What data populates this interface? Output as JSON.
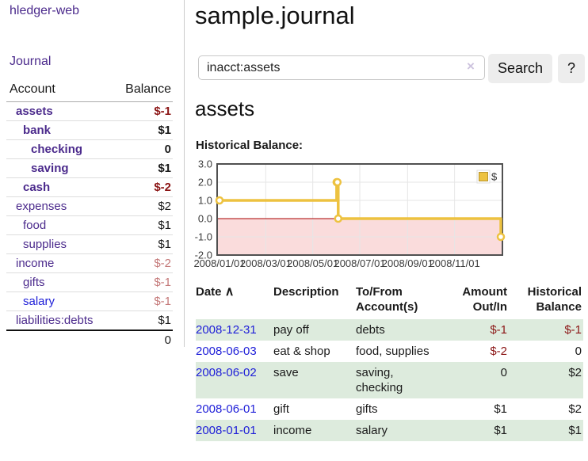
{
  "app": {
    "brand": "hledger-web",
    "journal_link": "Journal"
  },
  "sidebar_accounts": {
    "headers": [
      "Account",
      "Balance"
    ],
    "rows": [
      {
        "name": "assets",
        "depth": 0,
        "bold": true,
        "balance": "$-1",
        "neg": "strong",
        "link": "purple"
      },
      {
        "name": "bank",
        "depth": 1,
        "bold": true,
        "balance": "$1",
        "neg": "none",
        "link": "purple"
      },
      {
        "name": "checking",
        "depth": 2,
        "bold": true,
        "balance": "0",
        "neg": "none",
        "link": "purple"
      },
      {
        "name": "saving",
        "depth": 2,
        "bold": true,
        "balance": "$1",
        "neg": "none",
        "link": "purple"
      },
      {
        "name": "cash",
        "depth": 1,
        "bold": true,
        "balance": "$-2",
        "neg": "strong",
        "link": "purple"
      },
      {
        "name": "expenses",
        "depth": 0,
        "bold": false,
        "balance": "$2",
        "neg": "none",
        "link": "purple"
      },
      {
        "name": "food",
        "depth": 1,
        "bold": false,
        "balance": "$1",
        "neg": "none",
        "link": "purple"
      },
      {
        "name": "supplies",
        "depth": 1,
        "bold": false,
        "balance": "$1",
        "neg": "none",
        "link": "purple"
      },
      {
        "name": "income",
        "depth": 0,
        "bold": false,
        "balance": "$-2",
        "neg": "soft",
        "link": "purple"
      },
      {
        "name": "gifts",
        "depth": 1,
        "bold": false,
        "balance": "$-1",
        "neg": "soft",
        "link": "purple"
      },
      {
        "name": "salary",
        "depth": 1,
        "bold": false,
        "balance": "$-1",
        "neg": "soft",
        "link": "blue"
      },
      {
        "name": "liabilities:debts",
        "depth": 0,
        "bold": false,
        "balance": "$1",
        "neg": "none",
        "link": "purple"
      }
    ],
    "total": "0"
  },
  "page": {
    "title": "sample.journal"
  },
  "search": {
    "value": "inacct:assets",
    "clear_icon": "×",
    "search_button": "Search",
    "help_button": "?"
  },
  "account": {
    "heading": "assets",
    "section_label": "Historical Balance:"
  },
  "chart_data": {
    "type": "line",
    "title": "Historical Balance",
    "legend": "$",
    "legend_position": "top-right",
    "series": [
      {
        "name": "$",
        "color": "#EDC240",
        "points": [
          [
            "2008-01-01",
            1
          ],
          [
            "2008-06-01",
            2
          ],
          [
            "2008-06-02",
            2
          ],
          [
            "2008-06-03",
            0
          ],
          [
            "2008-12-31",
            -1
          ]
        ]
      }
    ],
    "x_domain": [
      "2008-01-01",
      "2008-12-31"
    ],
    "x_ticks": [
      "2008/01/01",
      "2008/03/01",
      "2008/05/01",
      "2008/07/01",
      "2008/09/01",
      "2008/11/01"
    ],
    "y_ticks": [
      "3.0",
      "2.0",
      "1.0",
      "0.0",
      "-1.0",
      "-2.0"
    ],
    "ylim": [
      -2,
      3
    ],
    "grid": true,
    "step": true,
    "negative_region_fill": "#FADCDC",
    "zero_line_color": "#AA0000"
  },
  "register": {
    "headers": {
      "date": "Date",
      "date_sort": "∧",
      "description": "Description",
      "accounts": [
        "To/From",
        "Account(s)"
      ],
      "amount": [
        "Amount",
        "Out/In"
      ],
      "balance": [
        "Historical",
        "Balance"
      ]
    },
    "rows": [
      {
        "date": "2008-12-31",
        "description": "pay off",
        "accounts_lines": [
          "debts"
        ],
        "amount": "$-1",
        "amount_neg": true,
        "balance": "$-1",
        "balance_neg": true
      },
      {
        "date": "2008-06-03",
        "description": "eat & shop",
        "accounts_lines": [
          "food, supplies"
        ],
        "amount": "$-2",
        "amount_neg": true,
        "balance": "0",
        "balance_neg": false
      },
      {
        "date": "2008-06-02",
        "description": "save",
        "accounts_lines": [
          "saving,",
          "checking"
        ],
        "amount": "0",
        "amount_neg": false,
        "balance": "$2",
        "balance_neg": false
      },
      {
        "date": "2008-06-01",
        "description": "gift",
        "accounts_lines": [
          "gifts"
        ],
        "amount": "$1",
        "amount_neg": false,
        "balance": "$2",
        "balance_neg": false
      },
      {
        "date": "2008-01-01",
        "description": "income",
        "accounts_lines": [
          "salary"
        ],
        "amount": "$1",
        "amount_neg": false,
        "balance": "$1",
        "balance_neg": false
      }
    ]
  },
  "colors": {
    "link-purple": "#4B2A8C",
    "link-blue": "#1E1ED8",
    "neg-strong": "#8B1515",
    "neg-soft": "#C47878",
    "row-green": "#DDEBDD",
    "chart-line": "#EDC240",
    "chart-neg-fill": "#FADCDC",
    "chart-zero": "#AA0000",
    "btn-bg": "#EDEDED",
    "text": "#1A1A1A"
  }
}
